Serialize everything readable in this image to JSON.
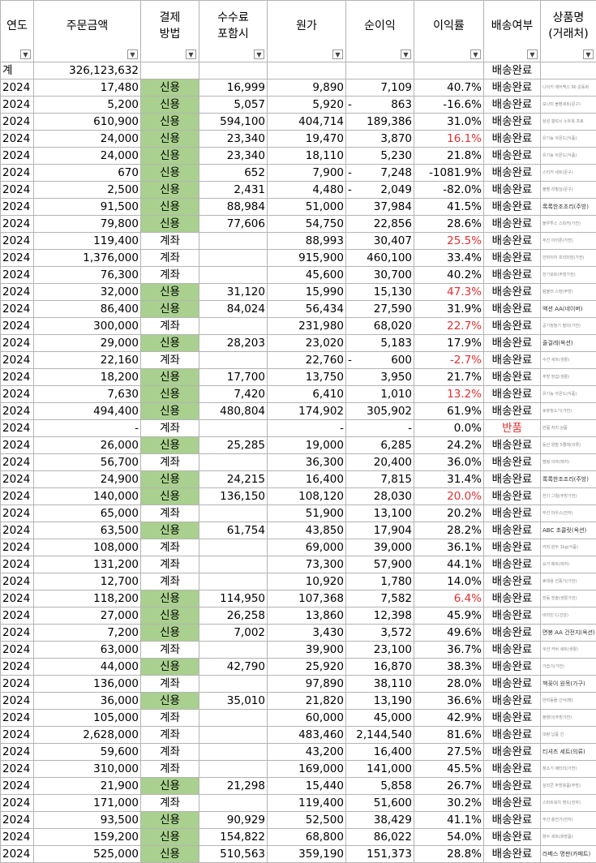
{
  "headers": [
    {
      "label": "연도"
    },
    {
      "label": "주문금액"
    },
    {
      "label": "결제\n방법"
    },
    {
      "label": "수수료\n포함시"
    },
    {
      "label": "원가"
    },
    {
      "label": "순이익"
    },
    {
      "label": "이익률"
    },
    {
      "label": "배송여부"
    },
    {
      "label": "상품명\n(거래처)"
    }
  ],
  "filter_glyph": "▼",
  "total_row": {
    "label": "계",
    "amount": "326,123,632",
    "status": "배송완료"
  },
  "rows": [
    {
      "y": "2024",
      "amt": "17,480",
      "pay": "신용",
      "fee": "16,999",
      "cost": "9,890",
      "profit": "7,109",
      "rate": "40.7%",
      "ship": "배송완료",
      "prod": "나이키 에어맥스 90 운동화"
    },
    {
      "y": "2024",
      "amt": "5,200",
      "pay": "신용",
      "fee": "5,057",
      "cost": "5,920",
      "neg": true,
      "profit": "863",
      "rate": "-16.6%",
      "ship": "배송완료",
      "prod": "모나미 볼펜세트(문구)"
    },
    {
      "y": "2024",
      "amt": "610,900",
      "pay": "신용",
      "fee": "594,100",
      "cost": "404,714",
      "profit": "189,386",
      "rate": "31.0%",
      "ship": "배송완료",
      "prod": "삼성 갤럭시 노트북 프로"
    },
    {
      "y": "2024",
      "amt": "24,000",
      "pay": "신용",
      "fee": "23,340",
      "cost": "19,470",
      "profit": "3,870",
      "rate": "16.1%",
      "rateRed": true,
      "ship": "배송완료",
      "prod": "유기농 아몬드(식품)"
    },
    {
      "y": "2024",
      "amt": "24,000",
      "pay": "신용",
      "fee": "23,340",
      "cost": "18,110",
      "profit": "5,230",
      "rate": "21.8%",
      "ship": "배송완료",
      "prod": "유기농 아몬드(식품)"
    },
    {
      "y": "2024",
      "amt": "670",
      "pay": "신용",
      "fee": "652",
      "cost": "7,900",
      "neg": true,
      "profit": "7,248",
      "rate": "-1081.9%",
      "ship": "배송완료",
      "prod": "스티커 세트(문구)"
    },
    {
      "y": "2024",
      "amt": "2,500",
      "pay": "신용",
      "fee": "2,431",
      "cost": "4,480",
      "neg": true,
      "profit": "2,049",
      "rate": "-82.0%",
      "ship": "배송완료",
      "prod": "볼펜 리필심(문구)"
    },
    {
      "y": "2024",
      "amt": "91,500",
      "pay": "신용",
      "fee": "88,984",
      "cost": "51,000",
      "profit": "37,984",
      "rate": "41.5%",
      "ship": "배송완료",
      "prod": "록록한조조리(주방)",
      "dark": true
    },
    {
      "y": "2024",
      "amt": "79,800",
      "pay": "신용",
      "fee": "77,606",
      "cost": "54,750",
      "profit": "22,856",
      "rate": "28.6%",
      "ship": "배송완료",
      "prod": "블루투스 스피커(가전)"
    },
    {
      "y": "2024",
      "amt": "119,400",
      "pay": "계좌",
      "fee": "",
      "cost": "88,993",
      "profit": "30,407",
      "rate": "25.5%",
      "rateRed": true,
      "ship": "배송완료",
      "prod": "무선 이어폰(가전)"
    },
    {
      "y": "2024",
      "amt": "1,376,000",
      "pay": "계좌",
      "fee": "",
      "cost": "915,900",
      "profit": "460,100",
      "rate": "33.4%",
      "ship": "배송완료",
      "prod": "안마의자 프리미엄(가전)"
    },
    {
      "y": "2024",
      "amt": "76,300",
      "pay": "계좌",
      "fee": "",
      "cost": "45,600",
      "profit": "30,700",
      "rate": "40.2%",
      "ship": "배송완료",
      "prod": "전기포트(주방가전)"
    },
    {
      "y": "2024",
      "amt": "32,000",
      "pay": "신용",
      "fee": "31,120",
      "cost": "15,990",
      "profit": "15,130",
      "rate": "47.3%",
      "rateRed": true,
      "ship": "배송완료",
      "prod": "텀블러 스텐(주방)"
    },
    {
      "y": "2024",
      "amt": "86,400",
      "pay": "신용",
      "fee": "84,024",
      "cost": "56,434",
      "profit": "27,590",
      "rate": "31.9%",
      "ship": "배송완료",
      "prod": "액션 AA(네이버)",
      "dark": true
    },
    {
      "y": "2024",
      "amt": "300,000",
      "pay": "계좌",
      "fee": "",
      "cost": "231,980",
      "profit": "68,020",
      "rate": "22.7%",
      "rateRed": true,
      "ship": "배송완료",
      "prod": "공기청정기 필터(가전)"
    },
    {
      "y": "2024",
      "amt": "29,000",
      "pay": "신용",
      "fee": "28,203",
      "cost": "23,020",
      "profit": "5,183",
      "rate": "17.9%",
      "ship": "배송완료",
      "prod": "줄걸레(옥션)",
      "dark": true
    },
    {
      "y": "2024",
      "amt": "22,160",
      "pay": "계좌",
      "fee": "",
      "cost": "22,760",
      "neg": true,
      "profit": "600",
      "rate": "-2.7%",
      "rateRed": true,
      "ship": "배송완료",
      "prod": "수건 세트(생활)"
    },
    {
      "y": "2024",
      "amt": "18,200",
      "pay": "신용",
      "fee": "17,700",
      "cost": "13,750",
      "profit": "3,950",
      "rate": "21.7%",
      "ship": "배송완료",
      "prod": "주방 장갑(생활)"
    },
    {
      "y": "2024",
      "amt": "7,630",
      "pay": "신용",
      "fee": "7,420",
      "cost": "6,410",
      "profit": "1,010",
      "rate": "13.2%",
      "rateRed": true,
      "ship": "배송완료",
      "prod": "유기농 아몬드(식품)"
    },
    {
      "y": "2024",
      "amt": "494,400",
      "pay": "신용",
      "fee": "480,804",
      "cost": "174,902",
      "profit": "305,902",
      "rate": "61.9%",
      "ship": "배송완료",
      "prod": "로봇청소기(가전)"
    },
    {
      "y": "2024",
      "amt": "-",
      "pay": "계좌",
      "fee": "",
      "cost": "-",
      "profit": "-",
      "rate": "0.0%",
      "ship": "반품",
      "shipRed": true,
      "prod": "반품 처리 상품"
    },
    {
      "y": "2024",
      "amt": "26,000",
      "pay": "신용",
      "fee": "25,285",
      "cost": "19,000",
      "profit": "6,285",
      "rate": "24.2%",
      "ship": "배송완료",
      "prod": "등산 양말 5켤레(의류)"
    },
    {
      "y": "2024",
      "amt": "56,700",
      "pay": "계좌",
      "fee": "",
      "cost": "36,300",
      "profit": "20,400",
      "rate": "36.0%",
      "ship": "배송완료",
      "prod": "캠핑 의자(레저)"
    },
    {
      "y": "2024",
      "amt": "24,900",
      "pay": "신용",
      "fee": "24,215",
      "cost": "16,400",
      "profit": "7,815",
      "rate": "31.4%",
      "ship": "배송완료",
      "prod": "록록한조조리(주방)",
      "dark": true
    },
    {
      "y": "2024",
      "amt": "140,000",
      "pay": "신용",
      "fee": "136,150",
      "cost": "108,120",
      "profit": "28,030",
      "rate": "20.0%",
      "rateRed": true,
      "ship": "배송완료",
      "prod": "전기 그릴(주방가전)"
    },
    {
      "y": "2024",
      "amt": "65,000",
      "pay": "계좌",
      "fee": "",
      "cost": "51,900",
      "profit": "13,100",
      "rate": "20.2%",
      "ship": "배송완료",
      "prod": "무선 마우스(전자)"
    },
    {
      "y": "2024",
      "amt": "63,500",
      "pay": "신용",
      "fee": "61,754",
      "cost": "43,850",
      "profit": "17,904",
      "rate": "28.2%",
      "ship": "배송완료",
      "prod": "ABC 초콜릿(옥션)",
      "dark": true
    },
    {
      "y": "2024",
      "amt": "108,000",
      "pay": "계좌",
      "fee": "",
      "cost": "69,000",
      "profit": "39,000",
      "rate": "36.1%",
      "ship": "배송완료",
      "prod": "커피 원두 1kg(식품)"
    },
    {
      "y": "2024",
      "amt": "131,200",
      "pay": "계좌",
      "fee": "",
      "cost": "73,300",
      "profit": "57,900",
      "rate": "44.1%",
      "ship": "배송완료",
      "prod": "요가 매트(레저)"
    },
    {
      "y": "2024",
      "amt": "12,700",
      "pay": "계좌",
      "fee": "",
      "cost": "10,920",
      "profit": "1,780",
      "rate": "14.0%",
      "ship": "배송완료",
      "prod": "휴대용 선풍기(가전)"
    },
    {
      "y": "2024",
      "amt": "118,200",
      "pay": "신용",
      "fee": "114,950",
      "cost": "107,368",
      "profit": "7,582",
      "rate": "6.4%",
      "rateRed": true,
      "ship": "배송완료",
      "prod": "전동 칫솔(생활가전)"
    },
    {
      "y": "2024",
      "amt": "27,000",
      "pay": "신용",
      "fee": "26,258",
      "cost": "13,860",
      "profit": "12,398",
      "rate": "45.9%",
      "ship": "배송완료",
      "prod": "비타민 C(건강)"
    },
    {
      "y": "2024",
      "amt": "7,200",
      "pay": "신용",
      "fee": "7,002",
      "cost": "3,430",
      "profit": "3,572",
      "rate": "49.6%",
      "ship": "배송완료",
      "prod": "면봉 AA 건전지(옥션)",
      "dark": true
    },
    {
      "y": "2024",
      "amt": "63,000",
      "pay": "계좌",
      "fee": "",
      "cost": "39,900",
      "profit": "23,100",
      "rate": "36.7%",
      "ship": "배송완료",
      "prod": "쿠션 커버 세트(생활)"
    },
    {
      "y": "2024",
      "amt": "44,000",
      "pay": "신용",
      "fee": "42,790",
      "cost": "25,920",
      "profit": "16,870",
      "rate": "38.3%",
      "ship": "배송완료",
      "prod": "가습기(가전)"
    },
    {
      "y": "2024",
      "amt": "136,000",
      "pay": "계좌",
      "fee": "",
      "cost": "97,890",
      "profit": "38,110",
      "rate": "28.0%",
      "ship": "배송완료",
      "prod": "책꽂이 원목(가구)",
      "dark": true
    },
    {
      "y": "2024",
      "amt": "36,000",
      "pay": "신용",
      "fee": "35,010",
      "cost": "21,820",
      "profit": "13,190",
      "rate": "36.6%",
      "ship": "배송완료",
      "prod": "반려동물 간식(펫)"
    },
    {
      "y": "2024",
      "amt": "105,000",
      "pay": "계좌",
      "fee": "",
      "cost": "60,000",
      "profit": "45,000",
      "rate": "42.9%",
      "ship": "배송완료",
      "prod": "블렌더(주방가전)"
    },
    {
      "y": "2024",
      "amt": "2,628,000",
      "pay": "계좌",
      "fee": "",
      "cost": "483,460",
      "profit": "2,144,540",
      "rate": "81.6%",
      "ship": "배송완료",
      "prod": "대량 납품 건"
    },
    {
      "y": "2024",
      "amt": "59,600",
      "pay": "계좌",
      "fee": "",
      "cost": "43,200",
      "profit": "16,400",
      "rate": "27.5%",
      "ship": "배송완료",
      "prod": "티셔츠 세트(의류)",
      "dark": true
    },
    {
      "y": "2024",
      "amt": "310,000",
      "pay": "계좌",
      "fee": "",
      "cost": "169,000",
      "profit": "141,000",
      "rate": "45.5%",
      "ship": "배송완료",
      "prod": "청소기 배터리(가전)"
    },
    {
      "y": "2024",
      "amt": "21,900",
      "pay": "신용",
      "fee": "21,298",
      "cost": "15,440",
      "profit": "5,858",
      "rate": "26.7%",
      "ship": "배송완료",
      "prod": "실리콘 주방용품(주방)"
    },
    {
      "y": "2024",
      "amt": "171,000",
      "pay": "계좌",
      "fee": "",
      "cost": "119,400",
      "profit": "51,600",
      "rate": "30.2%",
      "ship": "배송완료",
      "prod": "스마트워치 밴드(전자)"
    },
    {
      "y": "2024",
      "amt": "93,500",
      "pay": "신용",
      "fee": "90,929",
      "cost": "52,500",
      "profit": "38,429",
      "rate": "41.1%",
      "ship": "배송완료",
      "prod": "무선 충전기(전자)"
    },
    {
      "y": "2024",
      "amt": "159,200",
      "pay": "신용",
      "fee": "154,822",
      "cost": "68,800",
      "profit": "86,022",
      "rate": "54.0%",
      "ship": "배송완료",
      "prod": "향수 세트(화장품)"
    },
    {
      "y": "2024",
      "amt": "525,000",
      "pay": "신용",
      "fee": "510,563",
      "cost": "359,190",
      "profit": "151,373",
      "rate": "28.8%",
      "ship": "배송완료",
      "prod": "라베스 명판(카페트)",
      "dark": true
    }
  ]
}
